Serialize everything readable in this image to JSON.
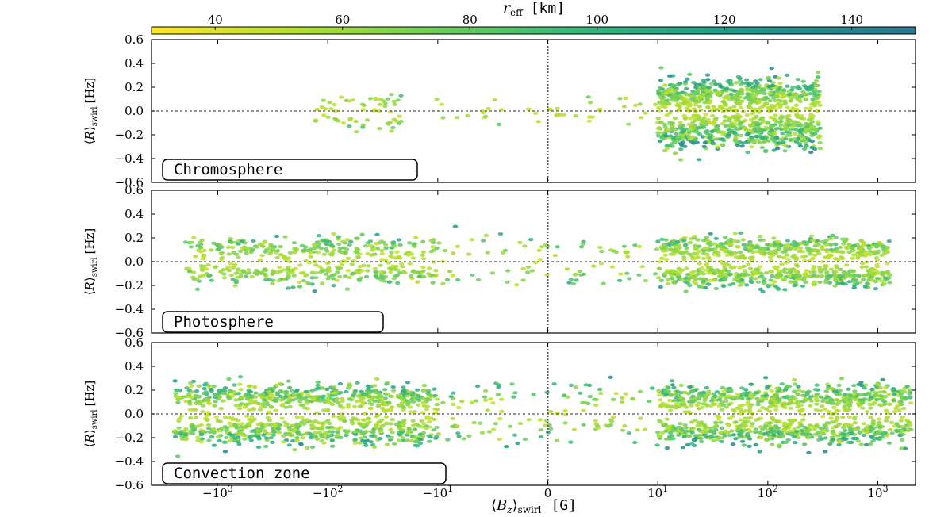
{
  "chart_data": [
    {
      "type": "colorbar",
      "title": "r_eff [km]",
      "title_parts": {
        "symbol": "r",
        "subscript": "eff",
        "unit": "[km]"
      },
      "range": [
        30,
        150
      ],
      "ticks": [
        40,
        60,
        80,
        100,
        120,
        140
      ],
      "colormap": [
        "#fde725",
        "#b5de2b",
        "#6ece58",
        "#35b779",
        "#1f9e89",
        "#26828e",
        "#31688e",
        "#3e4989",
        "#482878",
        "#440154"
      ],
      "display_colormap_range": [
        0.0,
        0.6
      ]
    },
    {
      "type": "scatter",
      "panel": "Chromosphere",
      "label": "Chromosphere",
      "xscale": "symlog",
      "xlim": [
        -4000,
        2200
      ],
      "ylim": [
        -0.6,
        0.6
      ],
      "yticks": [
        "0.6",
        "0.4",
        "0.2",
        "0.0",
        "−0.2",
        "−0.4",
        "−0.6"
      ],
      "reference_lines": {
        "y": 0.0,
        "x": 0.0,
        "style": "dotted"
      },
      "clusters": [
        {
          "x_range": [
            -130,
            -20
          ],
          "y_mean": 0.07,
          "y_sd": 0.045,
          "n": 30
        },
        {
          "x_range": [
            -20,
            10
          ],
          "y_mean": 0.05,
          "y_sd": 0.04,
          "n": 20
        },
        {
          "x_range": [
            10,
            300
          ],
          "y_mean": 0.14,
          "y_sd": 0.08,
          "n": 500
        },
        {
          "x_range": [
            -130,
            -20
          ],
          "y_mean": -0.08,
          "y_sd": 0.05,
          "n": 30
        },
        {
          "x_range": [
            -20,
            10
          ],
          "y_mean": -0.06,
          "y_sd": 0.04,
          "n": 20
        },
        {
          "x_range": [
            10,
            300
          ],
          "y_mean": -0.17,
          "y_sd": 0.08,
          "n": 500
        }
      ]
    },
    {
      "type": "scatter",
      "panel": "Photosphere",
      "label": "Photosphere",
      "xscale": "symlog",
      "xlim": [
        -4000,
        2200
      ],
      "ylim": [
        -0.6,
        0.6
      ],
      "yticks": [
        "0.6",
        "0.4",
        "0.2",
        "0.0",
        "−0.2",
        "−0.4",
        "−0.6"
      ],
      "reference_lines": {
        "y": 0.0,
        "x": 0.0,
        "style": "dotted"
      },
      "clusters": [
        {
          "x_range": [
            -2000,
            -10
          ],
          "y_mean": 0.11,
          "y_sd": 0.05,
          "n": 230
        },
        {
          "x_range": [
            -10,
            10
          ],
          "y_mean": 0.1,
          "y_sd": 0.05,
          "n": 40
        },
        {
          "x_range": [
            10,
            1300
          ],
          "y_mean": 0.11,
          "y_sd": 0.05,
          "n": 400
        },
        {
          "x_range": [
            -2000,
            -10
          ],
          "y_mean": -0.1,
          "y_sd": 0.05,
          "n": 230
        },
        {
          "x_range": [
            -10,
            10
          ],
          "y_mean": -0.1,
          "y_sd": 0.05,
          "n": 40
        },
        {
          "x_range": [
            10,
            1300
          ],
          "y_mean": -0.12,
          "y_sd": 0.05,
          "n": 400
        }
      ]
    },
    {
      "type": "scatter",
      "panel": "Convection zone",
      "label": "Convection zone",
      "xscale": "symlog",
      "xlim": [
        -4000,
        2200
      ],
      "ylim": [
        -0.6,
        0.6
      ],
      "yticks": [
        "0.6",
        "0.4",
        "0.2",
        "0.0",
        "−0.2",
        "−0.4",
        "−0.6"
      ],
      "reference_lines": {
        "y": 0.0,
        "x": 0.0,
        "style": "dotted"
      },
      "clusters": [
        {
          "x_range": [
            -2500,
            -10
          ],
          "y_mean": 0.14,
          "y_sd": 0.06,
          "n": 480
        },
        {
          "x_range": [
            -10,
            10
          ],
          "y_mean": 0.13,
          "y_sd": 0.06,
          "n": 60
        },
        {
          "x_range": [
            10,
            2000
          ],
          "y_mean": 0.13,
          "y_sd": 0.06,
          "n": 500
        },
        {
          "x_range": [
            -2500,
            -10
          ],
          "y_mean": -0.14,
          "y_sd": 0.06,
          "n": 480
        },
        {
          "x_range": [
            -10,
            10
          ],
          "y_mean": -0.13,
          "y_sd": 0.06,
          "n": 60
        },
        {
          "x_range": [
            10,
            2000
          ],
          "y_mean": -0.14,
          "y_sd": 0.06,
          "n": 500
        }
      ]
    }
  ],
  "xaxis": {
    "ticks": [
      {
        "value": -1000,
        "label": "−10",
        "sup": "3"
      },
      {
        "value": -100,
        "label": "−10",
        "sup": "2"
      },
      {
        "value": -10,
        "label": "−10",
        "sup": "1"
      },
      {
        "value": 0,
        "label": "0",
        "sup": ""
      },
      {
        "value": 10,
        "label": "10",
        "sup": "1"
      },
      {
        "value": 100,
        "label": "10",
        "sup": "2"
      },
      {
        "value": 1000,
        "label": "10",
        "sup": "3"
      }
    ],
    "title": "⟨B_z⟩_swirl [G]",
    "title_parts": {
      "open": "⟨",
      "symbol": "B",
      "sub1": "z",
      "close": "⟩",
      "sub2": "swirl",
      "unit": "[G]"
    }
  },
  "yaxis": {
    "title": "⟨R⟩_swirl [Hz]",
    "title_parts": {
      "open": "⟨",
      "symbol": "R",
      "close": "⟩",
      "sub": "swirl",
      "unit": "[Hz]"
    }
  }
}
